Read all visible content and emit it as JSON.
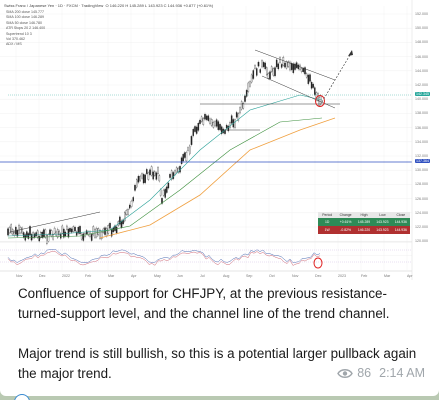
{
  "chart": {
    "title": "Swiss Franc / Japanese Yen · 1D · FXCM · TradingView",
    "ohlc": "O 146.220  H 145.289  L 143.923  C 144.936  +0.877 (+0.61%)",
    "indicators": [
      "SMA 200 close  145.777",
      "SMA 100 close  146.289",
      "SMA 50 close  146.780",
      "ATR Stops 20 2  146.400",
      "Supertrend 10 3",
      "Vol  370.462",
      "ADX / MS"
    ],
    "x_labels": [
      "Nov",
      "Dec",
      "2022",
      "Feb",
      "Mar",
      "Apr",
      "May",
      "Jun",
      "Jul",
      "Aug",
      "Sep",
      "Oct",
      "Nov",
      "Dec",
      "2023",
      "Feb",
      "Mar",
      "Apr"
    ],
    "y_labels": [
      "152.000",
      "150.000",
      "148.000",
      "146.000",
      "144.000",
      "142.000",
      "140.000",
      "138.000",
      "136.000",
      "134.000",
      "132.000",
      "130.000",
      "128.000",
      "126.000",
      "124.000",
      "122.000",
      "120.000"
    ],
    "last_price": "142.345",
    "level_price": "137.364",
    "table": {
      "headers": [
        "Period",
        "Change",
        "High",
        "Low",
        "Close"
      ],
      "row1": [
        "1D",
        "+0.61%",
        "145.289",
        "143.923",
        "144.936"
      ],
      "row2": [
        "1W",
        "-0.82%",
        "146.220",
        "143.923",
        "144.936"
      ]
    }
  },
  "post": {
    "paragraph1": "Confluence of support for CHFJPY, at the previous resistance-turned-support level, and the channel line of the trend channel.",
    "paragraph2": "Major trend is still bullish, so this is a potential larger pullback again the major trend.",
    "views": "86",
    "time": "2:14 AM"
  },
  "colors": {
    "bullish": "#26a69a",
    "bearish": "#ef5350",
    "sma_orange": "#f0a040",
    "horizontal_blue": "#3050c0",
    "chat_bg": "#b9c9b2"
  }
}
